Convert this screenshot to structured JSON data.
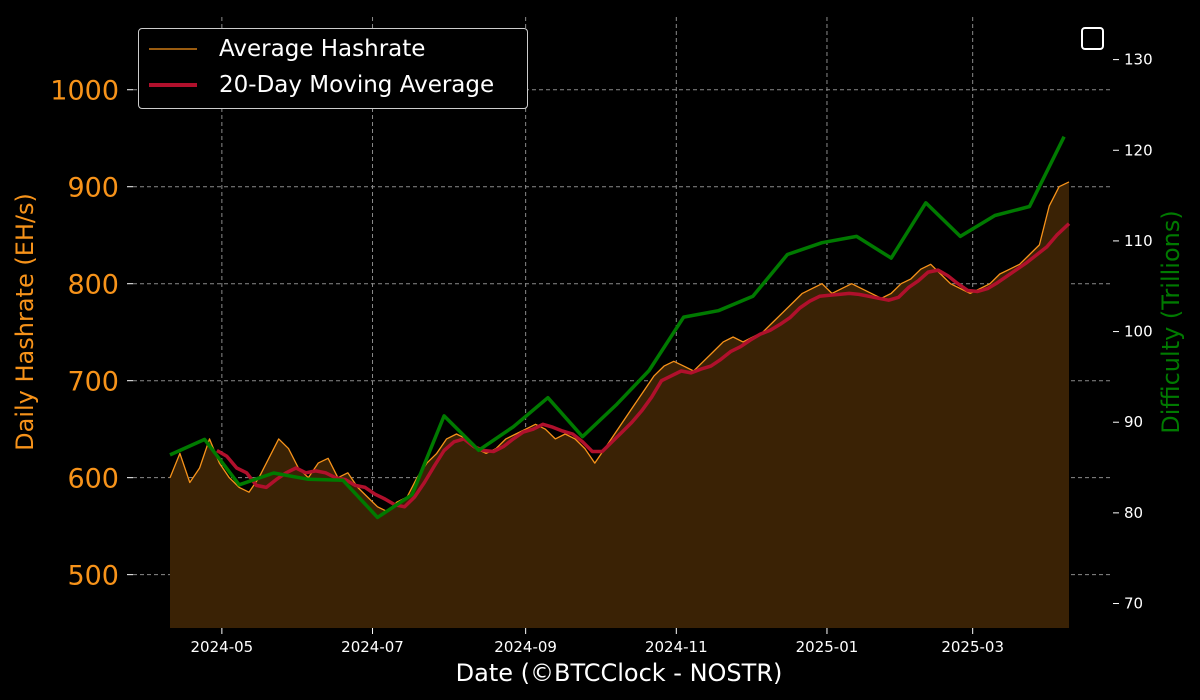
{
  "chart_data": {
    "type": "line",
    "xlabel": "Date (©BTCClock - NOSTR)",
    "ylabel": "Daily Hashrate (EH/s)",
    "y2label": "Difficulty (Trillions)",
    "x_range": [
      "2024-04-10",
      "2025-04-09"
    ],
    "ylim": [
      445,
      1075
    ],
    "y2lim": [
      67.3,
      134.7
    ],
    "x_ticks": [
      "2024-05",
      "2024-07",
      "2024-09",
      "2024-11",
      "2025-01",
      "2025-03"
    ],
    "y_ticks": [
      "500",
      "600",
      "700",
      "800",
      "900",
      "1000"
    ],
    "y2_ticks": [
      "70",
      "80",
      "90",
      "100",
      "110",
      "120",
      "130"
    ],
    "grid": true,
    "legend_position": "top-left",
    "colors": {
      "hashrate": "#f7931a",
      "moving_average": "#b0102c",
      "difficulty": "#007a00",
      "fill": "#3a2205",
      "grid": "#8a8a8a",
      "axis_text": "#ffffff",
      "ylabel": "#f7931a",
      "y2label": "#007a00"
    },
    "series": [
      {
        "name": "Average Hashrate",
        "axis": "left",
        "points": [
          [
            "2024-04-10",
            600
          ],
          [
            "2024-04-14",
            625
          ],
          [
            "2024-04-18",
            595
          ],
          [
            "2024-04-22",
            610
          ],
          [
            "2024-04-26",
            640
          ],
          [
            "2024-04-30",
            615
          ],
          [
            "2024-05-04",
            600
          ],
          [
            "2024-05-08",
            590
          ],
          [
            "2024-05-12",
            585
          ],
          [
            "2024-05-16",
            600
          ],
          [
            "2024-05-20",
            620
          ],
          [
            "2024-05-24",
            640
          ],
          [
            "2024-05-28",
            630
          ],
          [
            "2024-06-01",
            610
          ],
          [
            "2024-06-05",
            600
          ],
          [
            "2024-06-09",
            615
          ],
          [
            "2024-06-13",
            620
          ],
          [
            "2024-06-17",
            600
          ],
          [
            "2024-06-21",
            605
          ],
          [
            "2024-06-25",
            590
          ],
          [
            "2024-06-29",
            580
          ],
          [
            "2024-07-03",
            570
          ],
          [
            "2024-07-07",
            565
          ],
          [
            "2024-07-11",
            575
          ],
          [
            "2024-07-15",
            580
          ],
          [
            "2024-07-19",
            600
          ],
          [
            "2024-07-23",
            615
          ],
          [
            "2024-07-27",
            625
          ],
          [
            "2024-07-31",
            640
          ],
          [
            "2024-08-04",
            645
          ],
          [
            "2024-08-08",
            640
          ],
          [
            "2024-08-12",
            630
          ],
          [
            "2024-08-16",
            625
          ],
          [
            "2024-08-20",
            630
          ],
          [
            "2024-08-24",
            640
          ],
          [
            "2024-08-28",
            645
          ],
          [
            "2024-09-01",
            650
          ],
          [
            "2024-09-05",
            655
          ],
          [
            "2024-09-09",
            650
          ],
          [
            "2024-09-13",
            640
          ],
          [
            "2024-09-17",
            645
          ],
          [
            "2024-09-21",
            640
          ],
          [
            "2024-09-25",
            630
          ],
          [
            "2024-09-29",
            615
          ],
          [
            "2024-10-03",
            630
          ],
          [
            "2024-10-07",
            645
          ],
          [
            "2024-10-11",
            660
          ],
          [
            "2024-10-15",
            675
          ],
          [
            "2024-10-19",
            690
          ],
          [
            "2024-10-23",
            705
          ],
          [
            "2024-10-27",
            715
          ],
          [
            "2024-10-31",
            720
          ],
          [
            "2024-11-04",
            715
          ],
          [
            "2024-11-08",
            710
          ],
          [
            "2024-11-12",
            720
          ],
          [
            "2024-11-16",
            730
          ],
          [
            "2024-11-20",
            740
          ],
          [
            "2024-11-24",
            745
          ],
          [
            "2024-11-28",
            740
          ],
          [
            "2024-12-02",
            745
          ],
          [
            "2024-12-06",
            750
          ],
          [
            "2024-12-10",
            760
          ],
          [
            "2024-12-14",
            770
          ],
          [
            "2024-12-18",
            780
          ],
          [
            "2024-12-22",
            790
          ],
          [
            "2024-12-26",
            795
          ],
          [
            "2024-12-30",
            800
          ],
          [
            "2025-01-03",
            790
          ],
          [
            "2025-01-07",
            795
          ],
          [
            "2025-01-11",
            800
          ],
          [
            "2025-01-15",
            795
          ],
          [
            "2025-01-19",
            790
          ],
          [
            "2025-01-23",
            785
          ],
          [
            "2025-01-27",
            790
          ],
          [
            "2025-01-31",
            800
          ],
          [
            "2025-02-04",
            805
          ],
          [
            "2025-02-08",
            815
          ],
          [
            "2025-02-12",
            820
          ],
          [
            "2025-02-16",
            810
          ],
          [
            "2025-02-20",
            800
          ],
          [
            "2025-02-24",
            795
          ],
          [
            "2025-02-28",
            790
          ],
          [
            "2025-03-04",
            795
          ],
          [
            "2025-03-08",
            800
          ],
          [
            "2025-03-12",
            810
          ],
          [
            "2025-03-16",
            815
          ],
          [
            "2025-03-20",
            820
          ],
          [
            "2025-03-24",
            830
          ],
          [
            "2025-03-28",
            840
          ],
          [
            "2025-04-01",
            880
          ],
          [
            "2025-04-05",
            900
          ],
          [
            "2025-04-09",
            905
          ]
        ]
      },
      {
        "name": "20-Day Moving Average",
        "axis": "left",
        "points": [
          [
            "2024-04-29",
            628
          ],
          [
            "2024-05-03",
            622
          ],
          [
            "2024-05-07",
            610
          ],
          [
            "2024-05-11",
            605
          ],
          [
            "2024-05-15",
            592
          ],
          [
            "2024-05-19",
            590
          ],
          [
            "2024-05-23",
            598
          ],
          [
            "2024-05-27",
            605
          ],
          [
            "2024-05-31",
            610
          ],
          [
            "2024-06-04",
            605
          ],
          [
            "2024-06-08",
            607
          ],
          [
            "2024-06-12",
            605
          ],
          [
            "2024-06-16",
            600
          ],
          [
            "2024-06-20",
            598
          ],
          [
            "2024-06-24",
            592
          ],
          [
            "2024-06-28",
            590
          ],
          [
            "2024-07-02",
            583
          ],
          [
            "2024-07-06",
            578
          ],
          [
            "2024-07-10",
            572
          ],
          [
            "2024-07-14",
            570
          ],
          [
            "2024-07-18",
            580
          ],
          [
            "2024-07-22",
            595
          ],
          [
            "2024-07-26",
            612
          ],
          [
            "2024-07-30",
            628
          ],
          [
            "2024-08-03",
            637
          ],
          [
            "2024-08-07",
            640
          ],
          [
            "2024-08-11",
            632
          ],
          [
            "2024-08-15",
            628
          ],
          [
            "2024-08-19",
            627
          ],
          [
            "2024-08-23",
            632
          ],
          [
            "2024-08-27",
            640
          ],
          [
            "2024-08-31",
            647
          ],
          [
            "2024-09-04",
            650
          ],
          [
            "2024-09-08",
            655
          ],
          [
            "2024-09-12",
            652
          ],
          [
            "2024-09-16",
            648
          ],
          [
            "2024-09-20",
            645
          ],
          [
            "2024-09-24",
            637
          ],
          [
            "2024-09-28",
            627
          ],
          [
            "2024-10-02",
            627
          ],
          [
            "2024-10-06",
            637
          ],
          [
            "2024-10-10",
            647
          ],
          [
            "2024-10-14",
            657
          ],
          [
            "2024-10-18",
            669
          ],
          [
            "2024-10-22",
            683
          ],
          [
            "2024-10-26",
            700
          ],
          [
            "2024-10-30",
            705
          ],
          [
            "2024-11-03",
            710
          ],
          [
            "2024-11-07",
            708
          ],
          [
            "2024-11-11",
            712
          ],
          [
            "2024-11-15",
            715
          ],
          [
            "2024-11-19",
            722
          ],
          [
            "2024-11-23",
            730
          ],
          [
            "2024-11-27",
            735
          ],
          [
            "2024-12-01",
            742
          ],
          [
            "2024-12-05",
            748
          ],
          [
            "2024-12-09",
            752
          ],
          [
            "2024-12-13",
            758
          ],
          [
            "2024-12-17",
            765
          ],
          [
            "2024-12-21",
            775
          ],
          [
            "2024-12-25",
            782
          ],
          [
            "2024-12-29",
            787
          ],
          [
            "2025-01-02",
            788
          ],
          [
            "2025-01-06",
            789
          ],
          [
            "2025-01-10",
            790
          ],
          [
            "2025-01-14",
            789
          ],
          [
            "2025-01-18",
            787
          ],
          [
            "2025-01-22",
            785
          ],
          [
            "2025-01-26",
            783
          ],
          [
            "2025-01-30",
            786
          ],
          [
            "2025-02-03",
            796
          ],
          [
            "2025-02-07",
            803
          ],
          [
            "2025-02-11",
            812
          ],
          [
            "2025-02-15",
            814
          ],
          [
            "2025-02-19",
            808
          ],
          [
            "2025-02-23",
            800
          ],
          [
            "2025-02-27",
            793
          ],
          [
            "2025-03-03",
            792
          ],
          [
            "2025-03-07",
            795
          ],
          [
            "2025-03-11",
            801
          ],
          [
            "2025-03-15",
            808
          ],
          [
            "2025-03-19",
            815
          ],
          [
            "2025-03-23",
            822
          ],
          [
            "2025-03-27",
            830
          ],
          [
            "2025-03-31",
            838
          ],
          [
            "2025-04-04",
            850
          ],
          [
            "2025-04-09",
            862
          ]
        ]
      },
      {
        "name": "Difficulty",
        "axis": "right",
        "points": [
          [
            "2024-04-10",
            86.4
          ],
          [
            "2024-04-24",
            88.1
          ],
          [
            "2024-05-08",
            83.1
          ],
          [
            "2024-05-22",
            84.4
          ],
          [
            "2024-06-05",
            83.7
          ],
          [
            "2024-06-19",
            83.6
          ],
          [
            "2024-07-03",
            79.5
          ],
          [
            "2024-07-17",
            82.0
          ],
          [
            "2024-07-30",
            90.7
          ],
          [
            "2024-08-13",
            86.9
          ],
          [
            "2024-08-27",
            89.5
          ],
          [
            "2024-09-10",
            92.7
          ],
          [
            "2024-09-24",
            88.4
          ],
          [
            "2024-10-08",
            92.0
          ],
          [
            "2024-10-21",
            95.7
          ],
          [
            "2024-11-04",
            101.6
          ],
          [
            "2024-11-18",
            102.3
          ],
          [
            "2024-12-02",
            103.9
          ],
          [
            "2024-12-16",
            108.5
          ],
          [
            "2024-12-30",
            109.8
          ],
          [
            "2025-01-13",
            110.5
          ],
          [
            "2025-01-27",
            108.1
          ],
          [
            "2025-02-10",
            114.2
          ],
          [
            "2025-02-24",
            110.5
          ],
          [
            "2025-03-10",
            112.8
          ],
          [
            "2025-03-24",
            113.8
          ],
          [
            "2025-04-07",
            121.5
          ]
        ]
      }
    ]
  }
}
